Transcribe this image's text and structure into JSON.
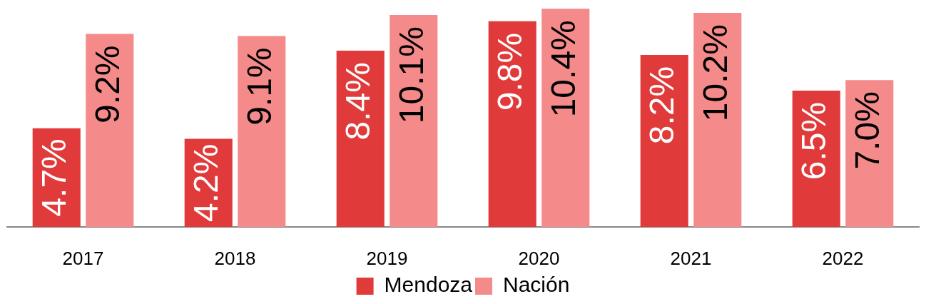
{
  "chart_data": {
    "type": "bar",
    "categories": [
      "2017",
      "2018",
      "2019",
      "2020",
      "2021",
      "2022"
    ],
    "series": [
      {
        "name": "Mendoza",
        "color": "#e03a3a",
        "values": [
          4.7,
          4.2,
          8.4,
          9.8,
          8.2,
          6.5
        ],
        "value_labels": [
          "4.7%",
          "4.2%",
          "8.4%",
          "9.8%",
          "8.2%",
          "6.5%"
        ]
      },
      {
        "name": "Nación",
        "color": "#f58a8a",
        "values": [
          9.2,
          9.1,
          10.1,
          10.4,
          10.2,
          7.0
        ],
        "value_labels": [
          "9.2%",
          "9.1%",
          "10.1%",
          "10.4%",
          "10.2%",
          "7.0%"
        ]
      }
    ],
    "legend": "bottom"
  }
}
